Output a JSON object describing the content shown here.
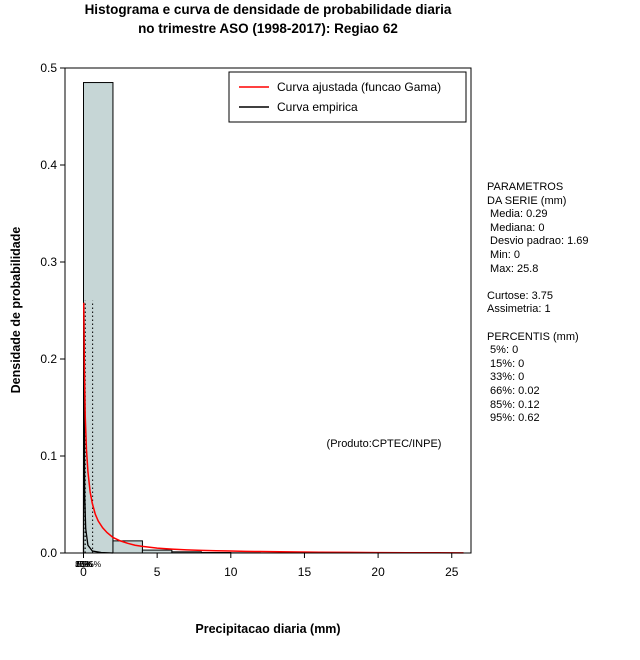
{
  "title": {
    "line1": "Histograma e curva de densidade de probabilidade diaria",
    "line2": "no trimestre ASO (1998-2017): Regiao 62"
  },
  "annotation": "(Produto:CPTEC/INPE)",
  "stats_panel": {
    "lines": [
      "PARAMETROS",
      "DA SERIE (mm)",
      " Media: 0.29",
      " Mediana: 0",
      " Desvio padrao: 1.69",
      " Min: 0",
      " Max: 25.8",
      "",
      "Curtose: 3.75",
      "Assimetria: 1",
      "",
      "PERCENTIS (mm)",
      " 5%: 0",
      " 15%: 0",
      " 33%: 0",
      " 66%: 0.02",
      " 85%: 0.12",
      " 95%: 0.62"
    ]
  },
  "chart_data": {
    "type": "bar",
    "subtype": "histogram-with-density-curves",
    "title": "Histograma e curva de densidade de probabilidade diaria no trimestre ASO (1998-2017): Regiao 62",
    "xlabel": "Precipitacao diaria (mm)",
    "ylabel": "Densidade de probabilidade",
    "xlim": [
      0,
      25.8
    ],
    "ylim": [
      0,
      0.5
    ],
    "x_ticks": [
      0,
      5,
      10,
      15,
      20,
      25
    ],
    "y_ticks": [
      0.0,
      0.1,
      0.2,
      0.3,
      0.4,
      0.5
    ],
    "grid": false,
    "legend_position": "top-right-inside",
    "histogram": {
      "fill": "#c6d6d6",
      "stroke": "#000000",
      "bin_width": 2,
      "bins": [
        {
          "x0": 0,
          "x1": 2,
          "density": 0.485
        },
        {
          "x0": 2,
          "x1": 4,
          "density": 0.0125
        },
        {
          "x0": 4,
          "x1": 6,
          "density": 0.003
        },
        {
          "x0": 6,
          "x1": 8,
          "density": 0.0012
        },
        {
          "x0": 8,
          "x1": 10,
          "density": 0.0005
        },
        {
          "x0": 10,
          "x1": 12,
          "density": 0.0002
        }
      ]
    },
    "gamma_curve": {
      "name": "Curva ajustada (funcao Gama)",
      "color": "#ff0000",
      "points": [
        [
          0.02,
          0.258
        ],
        [
          0.06,
          0.19
        ],
        [
          0.12,
          0.14
        ],
        [
          0.2,
          0.107
        ],
        [
          0.3,
          0.084
        ],
        [
          0.45,
          0.063
        ],
        [
          0.6,
          0.051
        ],
        [
          0.8,
          0.04
        ],
        [
          1.0,
          0.033
        ],
        [
          1.3,
          0.026
        ],
        [
          1.6,
          0.021
        ],
        [
          2.0,
          0.016
        ],
        [
          2.5,
          0.0125
        ],
        [
          3.0,
          0.01
        ],
        [
          3.5,
          0.008
        ],
        [
          4.0,
          0.0068
        ],
        [
          5.0,
          0.005
        ],
        [
          6.0,
          0.004
        ],
        [
          7.0,
          0.0032
        ],
        [
          8.0,
          0.0027
        ],
        [
          9.0,
          0.0023
        ],
        [
          10.0,
          0.002
        ],
        [
          11,
          0.0017
        ],
        [
          12,
          0.0015
        ],
        [
          14,
          0.0011
        ],
        [
          16,
          0.0008
        ],
        [
          18,
          0.0006
        ],
        [
          20,
          0.00045
        ],
        [
          22,
          0.0003
        ],
        [
          24,
          0.0002
        ],
        [
          25.8,
          0.00015
        ]
      ]
    },
    "empirical_curve": {
      "name": "Curva empirica",
      "color": "#000000",
      "points": [
        [
          0,
          0
        ],
        [
          0.02,
          0.258
        ],
        [
          0.08,
          0.06
        ],
        [
          0.15,
          0.025
        ],
        [
          0.3,
          0.008
        ],
        [
          0.6,
          0.002
        ],
        [
          1.2,
          0.0005
        ],
        [
          2,
          0
        ]
      ]
    },
    "percentile_line_top": 0.26,
    "percentiles": [
      {
        "label": "5%",
        "x": 0
      },
      {
        "label": "15%",
        "x": 0
      },
      {
        "label": "33%",
        "x": 0
      },
      {
        "label": "66%",
        "x": 0.02
      },
      {
        "label": "85%",
        "x": 0.12
      },
      {
        "label": "95%",
        "x": 0.62
      }
    ],
    "legend": {
      "entries": [
        {
          "label": "Curva ajustada (funcao Gama)",
          "color": "#ff0000"
        },
        {
          "label": "Curva empirica",
          "color": "#000000"
        }
      ]
    }
  }
}
